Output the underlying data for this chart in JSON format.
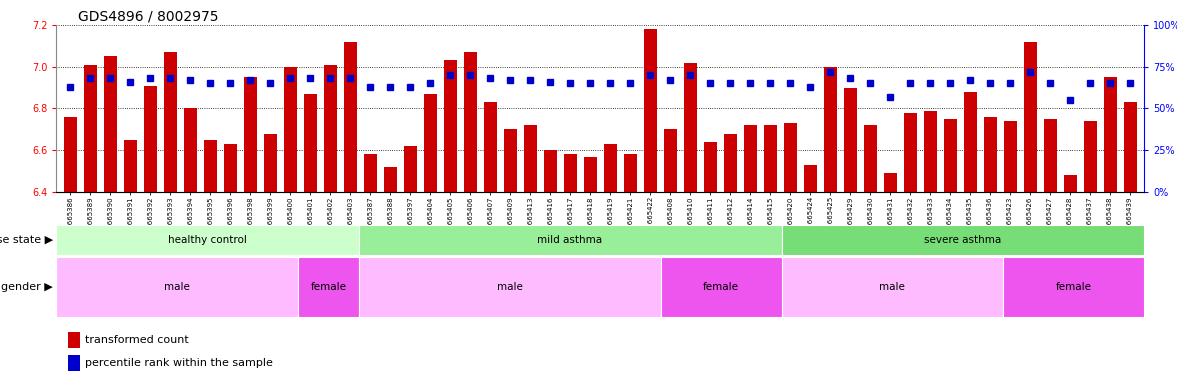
{
  "title": "GDS4896 / 8002975",
  "samples": [
    "GSM665386",
    "GSM665389",
    "GSM665390",
    "GSM665391",
    "GSM665392",
    "GSM665393",
    "GSM665394",
    "GSM665395",
    "GSM665396",
    "GSM665398",
    "GSM665399",
    "GSM665400",
    "GSM665401",
    "GSM665402",
    "GSM665403",
    "GSM665387",
    "GSM665388",
    "GSM665397",
    "GSM665404",
    "GSM665405",
    "GSM665406",
    "GSM665407",
    "GSM665409",
    "GSM665413",
    "GSM665416",
    "GSM665417",
    "GSM665418",
    "GSM665419",
    "GSM665421",
    "GSM665422",
    "GSM665408",
    "GSM665410",
    "GSM665411",
    "GSM665412",
    "GSM665414",
    "GSM665415",
    "GSM665420",
    "GSM665424",
    "GSM665425",
    "GSM665429",
    "GSM665430",
    "GSM665431",
    "GSM665432",
    "GSM665433",
    "GSM665434",
    "GSM665435",
    "GSM665436",
    "GSM665423",
    "GSM665426",
    "GSM665427",
    "GSM665428",
    "GSM665437",
    "GSM665438",
    "GSM665439"
  ],
  "bar_values": [
    6.76,
    7.01,
    7.05,
    6.65,
    6.91,
    7.07,
    6.8,
    6.65,
    6.63,
    6.95,
    6.68,
    7.0,
    6.87,
    7.01,
    7.12,
    6.58,
    6.52,
    6.62,
    6.87,
    7.03,
    7.07,
    6.83,
    6.7,
    6.72,
    6.6,
    6.58,
    6.57,
    6.63,
    6.58,
    7.18,
    6.7,
    7.02,
    6.64,
    6.68,
    6.72,
    6.72,
    6.73,
    6.53,
    7.0,
    6.9,
    6.72,
    6.49,
    6.78,
    6.79,
    6.75,
    6.88,
    6.76,
    6.74,
    7.12,
    6.75,
    6.48,
    6.74,
    6.95,
    6.83
  ],
  "percentile_values": [
    63,
    68,
    68,
    66,
    68,
    68,
    67,
    65,
    65,
    67,
    65,
    68,
    68,
    68,
    68,
    63,
    63,
    63,
    65,
    70,
    70,
    68,
    67,
    67,
    66,
    65,
    65,
    65,
    65,
    70,
    67,
    70,
    65,
    65,
    65,
    65,
    65,
    63,
    72,
    68,
    65,
    57,
    65,
    65,
    65,
    67,
    65,
    65,
    72,
    65,
    55,
    65,
    65,
    65
  ],
  "ylim_left": [
    6.4,
    7.2
  ],
  "ylim_right": [
    0,
    100
  ],
  "yticks_left": [
    6.4,
    6.6,
    6.8,
    7.0,
    7.2
  ],
  "yticks_right": [
    0,
    25,
    50,
    75,
    100
  ],
  "ytick_labels_right": [
    "0%",
    "25%",
    "50%",
    "75%",
    "100%"
  ],
  "bar_color": "#cc0000",
  "dot_color": "#0000cc",
  "disease_groups": [
    {
      "label": "healthy control",
      "start": 0,
      "end": 15,
      "color": "#ccffcc"
    },
    {
      "label": "mild asthma",
      "start": 15,
      "end": 36,
      "color": "#99ee99"
    },
    {
      "label": "severe asthma",
      "start": 36,
      "end": 54,
      "color": "#77dd77"
    }
  ],
  "gender_groups": [
    {
      "label": "male",
      "start": 0,
      "end": 12,
      "color": "#ffbbff"
    },
    {
      "label": "female",
      "start": 12,
      "end": 15,
      "color": "#ee55ee"
    },
    {
      "label": "male",
      "start": 15,
      "end": 30,
      "color": "#ffbbff"
    },
    {
      "label": "female",
      "start": 30,
      "end": 36,
      "color": "#ee55ee"
    },
    {
      "label": "male",
      "start": 36,
      "end": 47,
      "color": "#ffbbff"
    },
    {
      "label": "female",
      "start": 47,
      "end": 54,
      "color": "#ee55ee"
    }
  ],
  "legend_bar_label": "transformed count",
  "legend_dot_label": "percentile rank within the sample",
  "disease_label": "disease state",
  "gender_label": "gender",
  "title_fontsize": 10,
  "yticklabel_fontsize": 7,
  "xticklabel_fontsize": 5.0,
  "band_label_fontsize": 8,
  "band_text_fontsize": 7.5,
  "legend_fontsize": 8
}
